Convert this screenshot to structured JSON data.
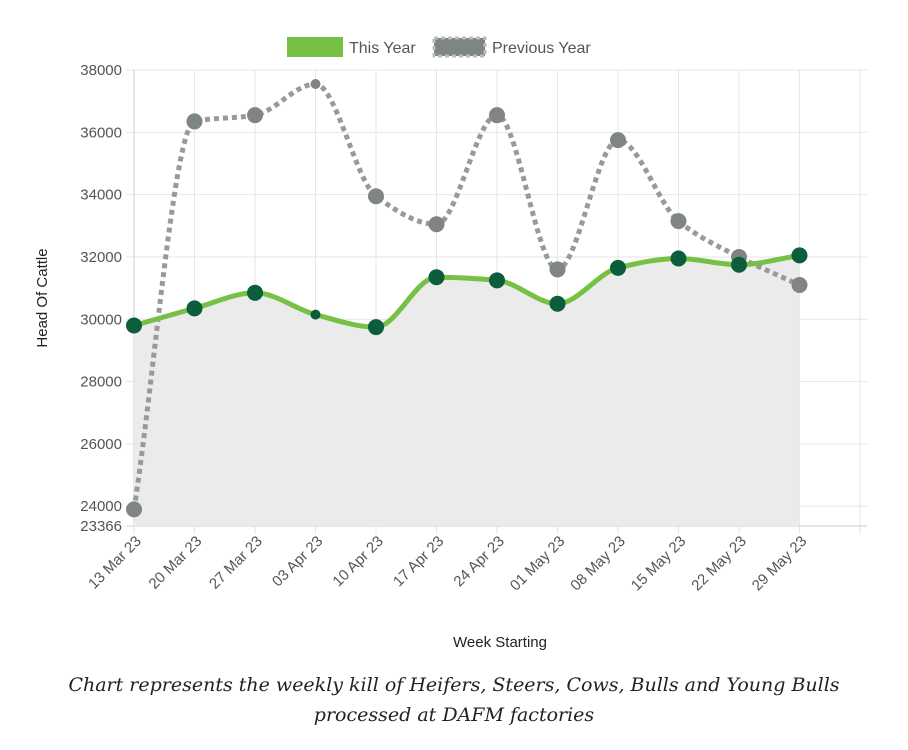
{
  "chart_data": {
    "type": "line",
    "xlabel": "Week Starting",
    "ylabel": "Head Of Cattle",
    "categories": [
      "13 Mar 23",
      "20 Mar 23",
      "27 Mar 23",
      "03 Apr 23",
      "10 Apr 23",
      "17 Apr 23",
      "24 Apr 23",
      "01 May 23",
      "08 May 23",
      "15 May 23",
      "22 May 23",
      "29 May 23"
    ],
    "series": [
      {
        "name": "This Year",
        "values": [
          29800,
          30350,
          30850,
          30150,
          29750,
          31350,
          31250,
          30500,
          31650,
          31950,
          31750,
          32050
        ]
      },
      {
        "name": "Previous Year",
        "values": [
          23900,
          36350,
          36550,
          37550,
          33950,
          33050,
          36550,
          31600,
          35750,
          33150,
          32000,
          31100
        ]
      }
    ],
    "ylim": [
      23366,
      38000
    ],
    "yticks": [
      24000,
      26000,
      28000,
      30000,
      32000,
      34000,
      36000,
      38000
    ],
    "ymin_label": "23366",
    "grid": true,
    "legend_position": "top",
    "colors": {
      "this_year": "#76c043",
      "this_year_marker": "#0b5d3b",
      "previous_year": "#999999",
      "previous_year_marker": "#7f8582",
      "area_fill": "#ebebeb",
      "grid": "#e6e6e6"
    }
  },
  "caption": "Chart represents the weekly kill of Heifers, Steers, Cows, Bulls and Young Bulls processed at DAFM factories"
}
